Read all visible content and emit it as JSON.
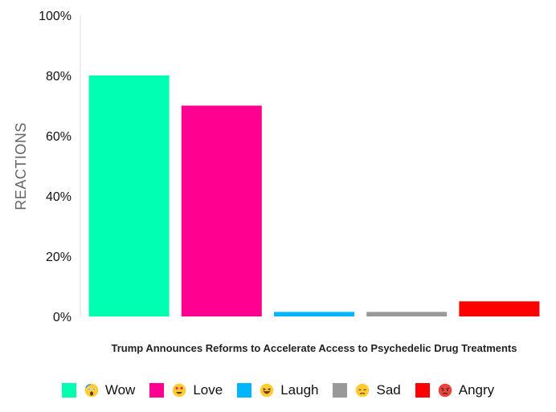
{
  "chart_data": {
    "type": "bar",
    "title": "",
    "xlabel": "",
    "ylabel": "REACTIONS",
    "categories": [
      "Trump Announces Reforms to Accelerate Access to Psychedelic Drug Treatments"
    ],
    "ylim": [
      0,
      100
    ],
    "yticks": [
      "0%",
      "20%",
      "40%",
      "60%",
      "80%",
      "100%"
    ],
    "grid": false,
    "legend_position": "bottom",
    "series": [
      {
        "name": "Wow",
        "values": [
          80
        ],
        "color": "#00ffb0",
        "icon": "shocked-face-icon"
      },
      {
        "name": "Love",
        "values": [
          70
        ],
        "color": "#ff0090",
        "icon": "heart-eyes-face-icon"
      },
      {
        "name": "Laugh",
        "values": [
          1.5
        ],
        "color": "#00b6ff",
        "icon": "laughing-face-icon"
      },
      {
        "name": "Sad",
        "values": [
          1.5
        ],
        "color": "#999999",
        "icon": "sad-face-icon"
      },
      {
        "name": "Angry",
        "values": [
          5
        ],
        "color": "#ff0000",
        "icon": "angry-face-icon"
      }
    ]
  }
}
